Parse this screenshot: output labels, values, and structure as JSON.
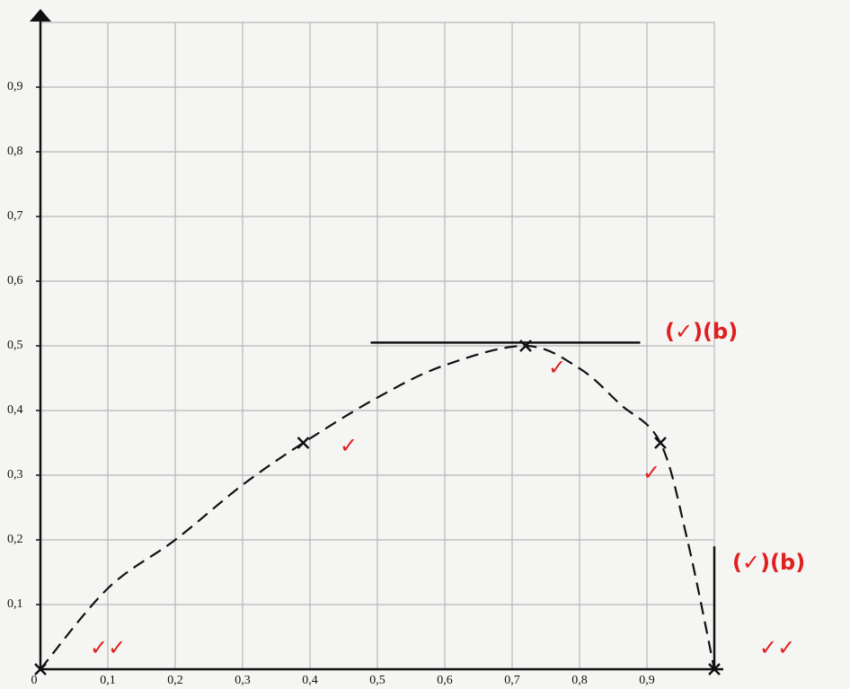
{
  "chart_data": {
    "type": "line",
    "origin_label": "0",
    "xlim": [
      0,
      1.0
    ],
    "ylim": [
      0,
      1.0
    ],
    "xticks": [
      {
        "value": 0.1,
        "label": "0,1"
      },
      {
        "value": 0.2,
        "label": "0,2"
      },
      {
        "value": 0.3,
        "label": "0,3"
      },
      {
        "value": 0.4,
        "label": "0,4"
      },
      {
        "value": 0.5,
        "label": "0,5"
      },
      {
        "value": 0.6,
        "label": "0,6"
      },
      {
        "value": 0.7,
        "label": "0,7"
      },
      {
        "value": 0.8,
        "label": "0,8"
      },
      {
        "value": 0.9,
        "label": "0,9"
      }
    ],
    "yticks": [
      {
        "value": 0.1,
        "label": "0,1"
      },
      {
        "value": 0.2,
        "label": "0,2"
      },
      {
        "value": 0.3,
        "label": "0,3"
      },
      {
        "value": 0.4,
        "label": "0,4"
      },
      {
        "value": 0.5,
        "label": "0,5"
      },
      {
        "value": 0.6,
        "label": "0,6"
      },
      {
        "value": 0.7,
        "label": "0,7"
      },
      {
        "value": 0.8,
        "label": "0,8"
      },
      {
        "value": 0.9,
        "label": "0,9"
      }
    ],
    "grid": true,
    "curve": {
      "color": "#111111",
      "x": [
        0,
        0.1,
        0.2,
        0.3,
        0.39,
        0.5,
        0.6,
        0.72,
        0.8,
        0.86,
        0.92,
        0.96,
        1.0
      ],
      "values": [
        0,
        0.125,
        0.2,
        0.285,
        0.35,
        0.42,
        0.47,
        0.5,
        0.465,
        0.41,
        0.35,
        0.2,
        0
      ]
    },
    "markers": {
      "x": [
        0,
        0.39,
        0.72,
        0.92,
        1.0
      ],
      "values": [
        0,
        0.35,
        0.5,
        0.35,
        0
      ]
    },
    "tangent": {
      "x": [
        0.49,
        0.89
      ],
      "values": [
        0.505,
        0.505
      ]
    },
    "vertical": {
      "x": [
        1.0,
        1.0
      ],
      "values": [
        0,
        0.19
      ]
    },
    "annotations": [
      "(✓)(b)",
      "(✓)(b)",
      "✓",
      "✓",
      "✓",
      "✓✓",
      "✓✓"
    ]
  }
}
